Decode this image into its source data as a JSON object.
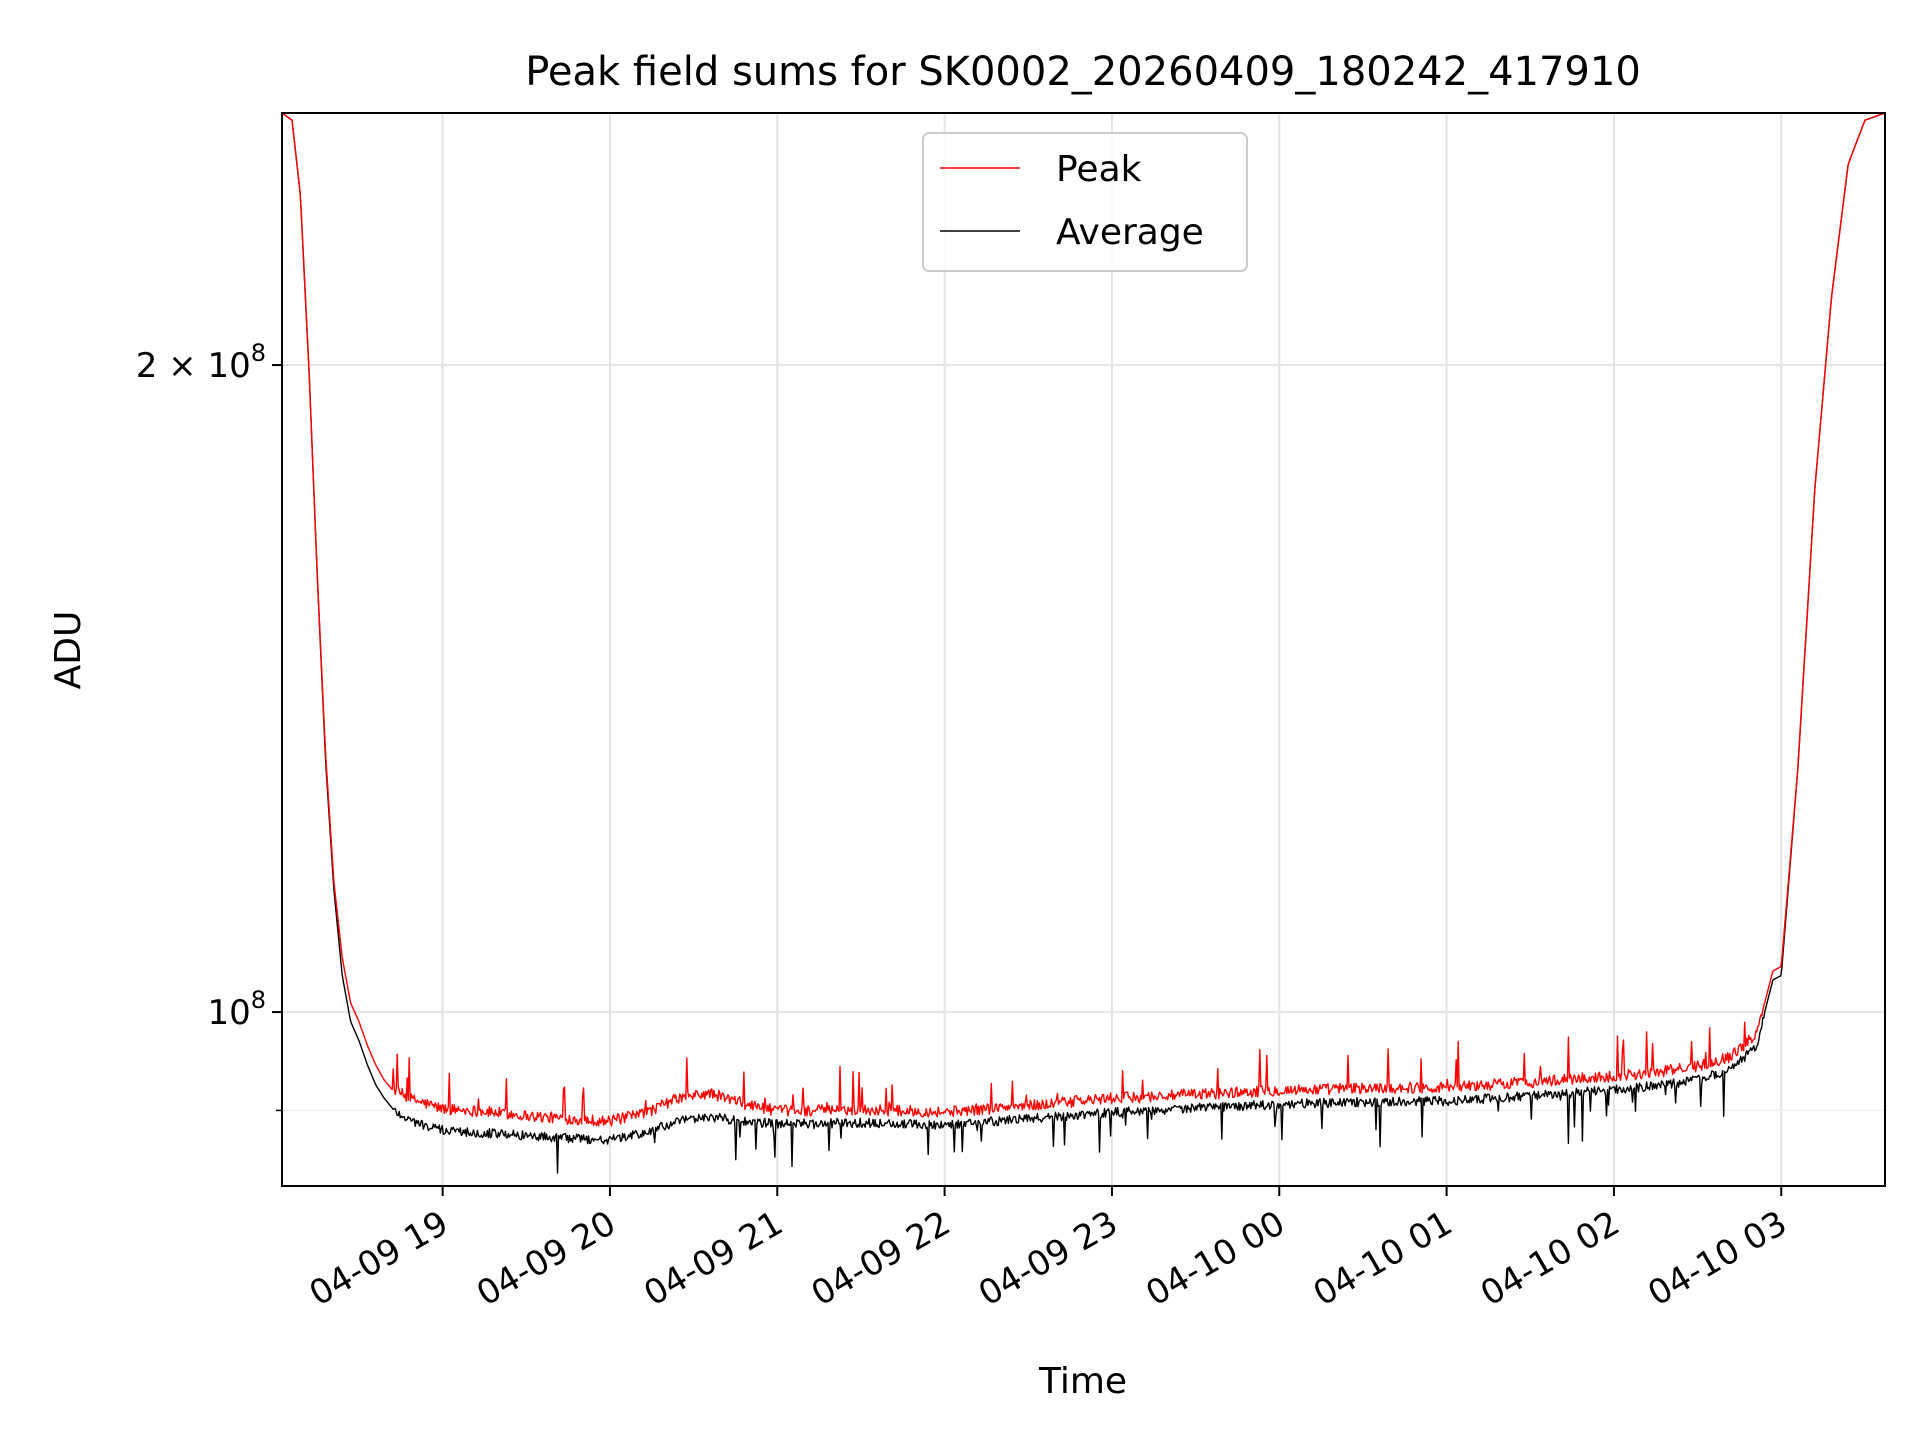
{
  "chart_data": {
    "type": "line",
    "title": "Peak field sums for SK0002_20260409_180242_417910",
    "xlabel": "Time",
    "ylabel": "ADU",
    "yscale": "log",
    "grid": true,
    "legend_position": "top-center",
    "x_unit": "hours since 2026-04-09 18:00",
    "xlim": [
      18.04,
      27.62
    ],
    "ylim": [
      83000000,
      262000000
    ],
    "x_ticks": [
      {
        "value": 19,
        "label": "04-09 19"
      },
      {
        "value": 20,
        "label": "04-09 20"
      },
      {
        "value": 21,
        "label": "04-09 21"
      },
      {
        "value": 22,
        "label": "04-09 22"
      },
      {
        "value": 23,
        "label": "04-09 23"
      },
      {
        "value": 24,
        "label": "04-10 00"
      },
      {
        "value": 25,
        "label": "04-10 01"
      },
      {
        "value": 26,
        "label": "04-10 02"
      },
      {
        "value": 27,
        "label": "04-10 03"
      }
    ],
    "y_ticks_major": [
      {
        "value": 100000000,
        "base": "10",
        "exp": "8",
        "mantissa": ""
      },
      {
        "value": 200000000,
        "base": "10",
        "exp": "8",
        "mantissa": "2 × "
      }
    ],
    "y_ticks_minor": [
      90000000
    ],
    "series": [
      {
        "name": "Peak",
        "color": "#ff0000",
        "x": [
          18.04,
          18.1,
          18.15,
          18.2,
          18.25,
          18.3,
          18.35,
          18.4,
          18.45,
          18.5,
          18.55,
          18.6,
          18.65,
          18.7,
          18.8,
          18.9,
          19.0,
          19.2,
          19.4,
          19.6,
          19.8,
          20.0,
          20.2,
          20.4,
          20.6,
          20.8,
          21.0,
          21.5,
          22.0,
          22.5,
          23.0,
          23.5,
          24.0,
          24.5,
          25.0,
          25.5,
          26.0,
          26.3,
          26.5,
          26.7,
          26.85,
          26.95,
          27.0,
          27.1,
          27.2,
          27.3,
          27.4,
          27.5,
          27.62
        ],
        "y": [
          262000000,
          260000000,
          240000000,
          200000000,
          160000000,
          132000000,
          115000000,
          106000000,
          101000000,
          99000000,
          96500000,
          94500000,
          93000000,
          92000000,
          91000000,
          90500000,
          90000000,
          89800000,
          89500000,
          89200000,
          89000000,
          88800000,
          89500000,
          91000000,
          91500000,
          90500000,
          89800000,
          89900000,
          89700000,
          90300000,
          91000000,
          91400000,
          91800000,
          92000000,
          92100000,
          92600000,
          93200000,
          93700000,
          94200000,
          95200000,
          97500000,
          104500000,
          105000000,
          130000000,
          175000000,
          215000000,
          248000000,
          260000000,
          262000000
        ]
      },
      {
        "name": "Average",
        "color": "#000000",
        "x": [
          18.04,
          18.1,
          18.15,
          18.2,
          18.25,
          18.3,
          18.35,
          18.4,
          18.45,
          18.5,
          18.55,
          18.6,
          18.65,
          18.7,
          18.8,
          18.9,
          19.0,
          19.2,
          19.4,
          19.6,
          19.8,
          20.0,
          20.2,
          20.4,
          20.6,
          20.8,
          21.0,
          21.5,
          22.0,
          22.5,
          23.0,
          23.5,
          24.0,
          24.5,
          25.0,
          25.5,
          26.0,
          26.3,
          26.5,
          26.7,
          26.85,
          26.95,
          27.0,
          27.1,
          27.2,
          27.3,
          27.4,
          27.5,
          27.62
        ],
        "y": [
          262000000,
          260000000,
          240000000,
          200000000,
          160000000,
          131000000,
          114000000,
          104000000,
          99000000,
          97000000,
          94500000,
          92500000,
          91200000,
          90200000,
          89200000,
          88600000,
          88200000,
          88000000,
          87800000,
          87600000,
          87400000,
          87300000,
          87900000,
          89000000,
          89500000,
          89000000,
          88800000,
          88900000,
          88700000,
          89300000,
          89900000,
          90300000,
          90700000,
          90900000,
          91000000,
          91500000,
          92100000,
          92600000,
          93100000,
          94100000,
          96500000,
          103500000,
          104000000,
          130000000,
          175000000,
          215000000,
          248000000,
          260000000,
          262000000
        ]
      }
    ]
  }
}
